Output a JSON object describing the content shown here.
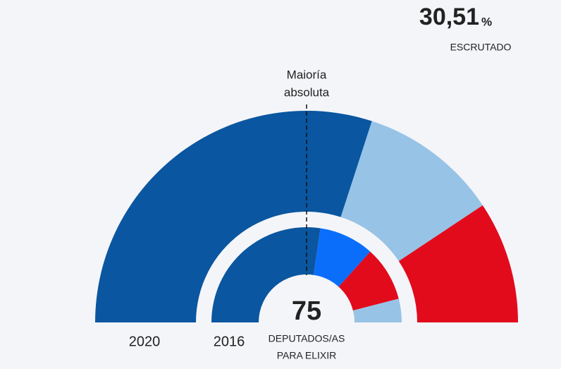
{
  "header": {
    "scrutiny": "30,51",
    "unit": "%",
    "label": "ESCRUTADO"
  },
  "chart_data": {
    "type": "parliament",
    "total_seats": 75,
    "center_label": [
      "DEPUTADOS/AS",
      "PARA ELIXIR"
    ],
    "majority_label": [
      "Maioría",
      "absoluta"
    ],
    "rings": [
      {
        "name": "2020",
        "values": [
          45,
          16,
          14
        ],
        "colors": [
          "#0a56a0",
          "#97c3e6",
          "#e20b1c"
        ]
      },
      {
        "name": "2016",
        "values": [
          41,
          14,
          14,
          6
        ],
        "colors": [
          "#0a56a0",
          "#0a6efb",
          "#e20b1c",
          "#97c3e6"
        ]
      }
    ]
  }
}
